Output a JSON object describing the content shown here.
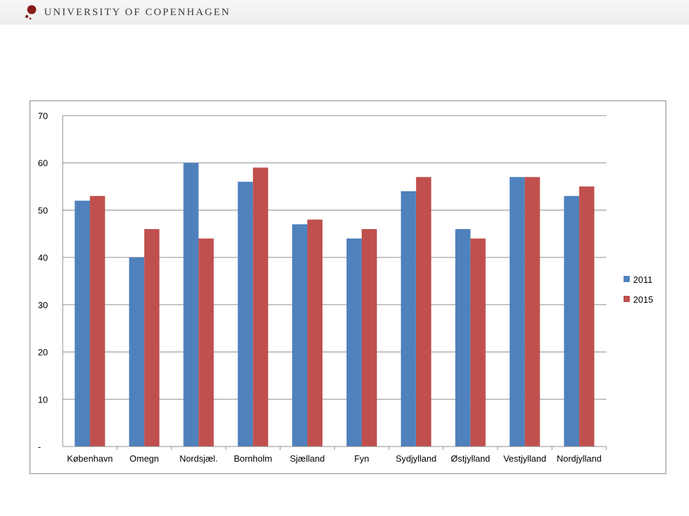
{
  "header": {
    "brand_name": "UNIVERSITY OF COPENHAGEN",
    "logo_icon": "university-seal-icon",
    "accent_color": "#8b1a1a"
  },
  "chart_data": {
    "type": "bar",
    "categories": [
      "København",
      "Omegn",
      "Nordsjæl.",
      "Bornholm",
      "Sjælland",
      "Fyn",
      "Sydjylland",
      "Østjylland",
      "Vestjylland",
      "Nordjylland"
    ],
    "series": [
      {
        "name": "2011",
        "color": "#4f81bd",
        "values": [
          52,
          40,
          60,
          56,
          47,
          44,
          54,
          46,
          57,
          53
        ]
      },
      {
        "name": "2015",
        "color": "#c0504d",
        "values": [
          53,
          46,
          44,
          59,
          48,
          46,
          57,
          44,
          57,
          55
        ]
      }
    ],
    "ylim": [
      0,
      70
    ],
    "yticks": [
      0,
      10,
      20,
      30,
      40,
      50,
      60,
      70
    ],
    "ytick_labels": [
      "-",
      "10",
      "20",
      "30",
      "40",
      "50",
      "60",
      "70"
    ],
    "grid": true,
    "legend": "right",
    "title": "",
    "xlabel": "",
    "ylabel": ""
  }
}
